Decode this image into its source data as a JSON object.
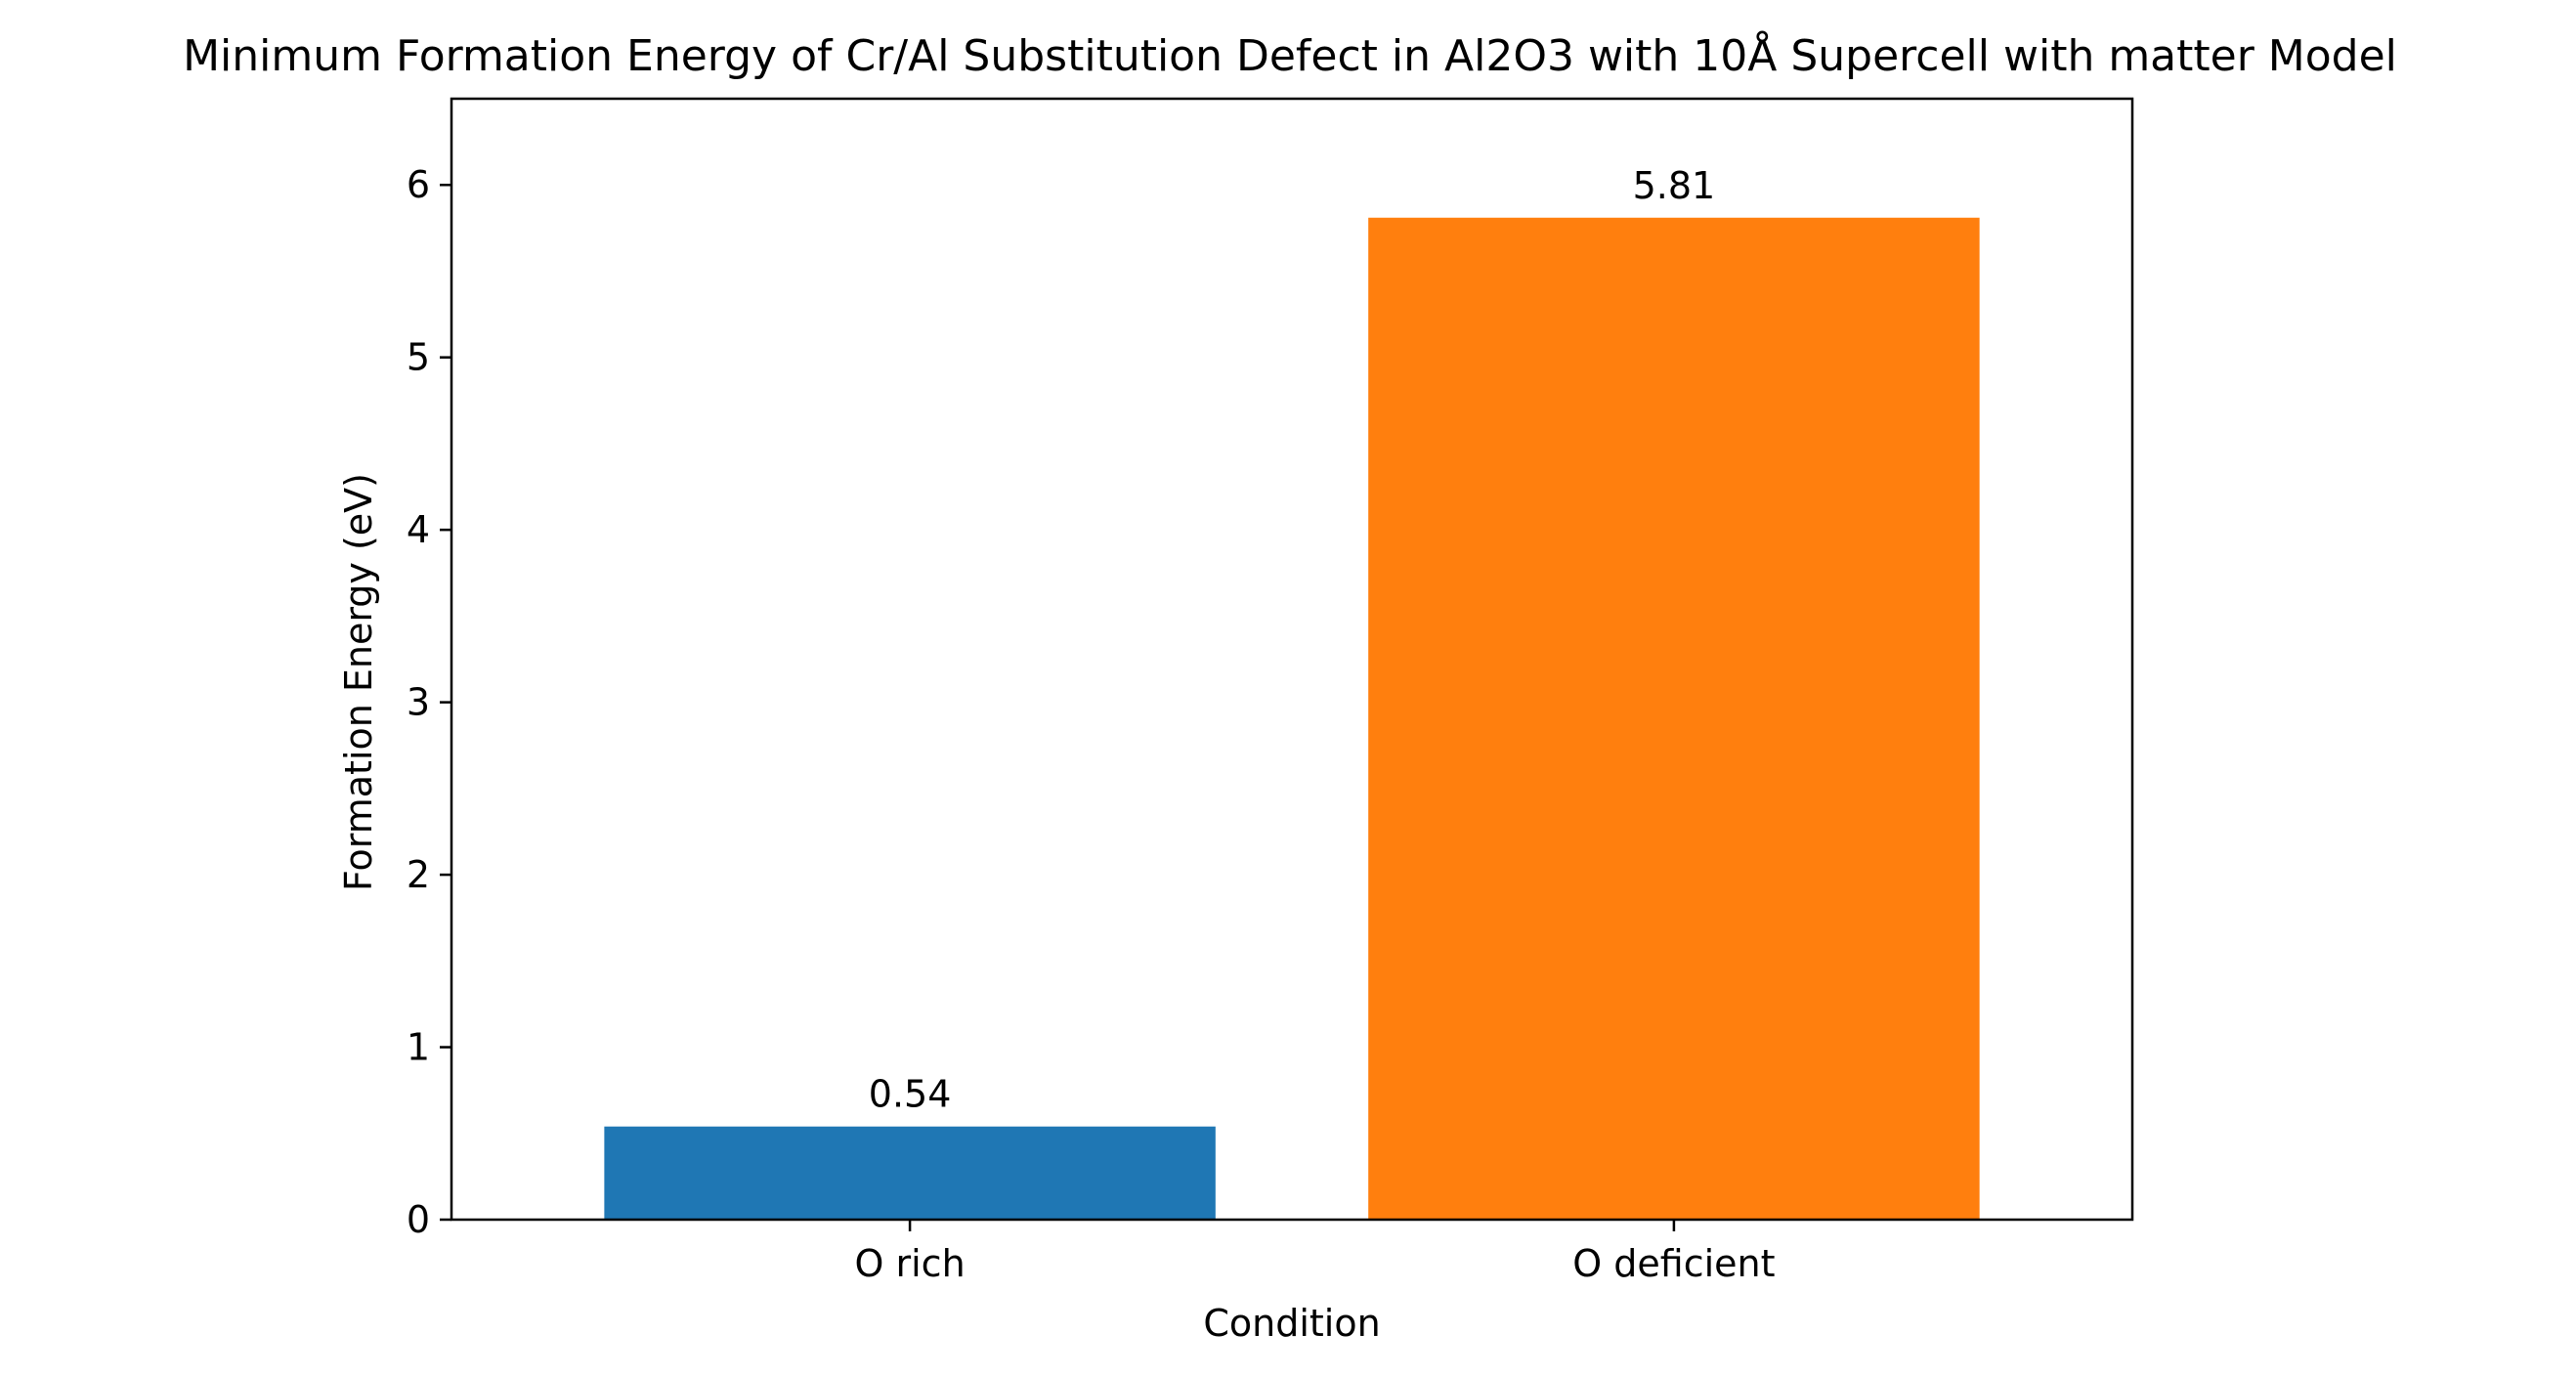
{
  "chart_data": {
    "type": "bar",
    "title": "Minimum Formation Energy of Cr/Al Substitution Defect in Al2O3 with 10Å Supercell with matter Model",
    "xlabel": "Condition",
    "ylabel": "Formation Energy (eV)",
    "categories": [
      "O rich",
      "O deficient"
    ],
    "values": [
      0.54,
      5.81
    ],
    "value_labels": [
      "0.54",
      "5.81"
    ],
    "colors": [
      "#1f77b4",
      "#ff7f0e"
    ],
    "ylim": [
      0,
      6.5
    ],
    "yticks": [
      0,
      1,
      2,
      3,
      4,
      5,
      6
    ],
    "ytick_labels": [
      "0",
      "1",
      "2",
      "3",
      "4",
      "5",
      "6"
    ],
    "grid": false,
    "legend": "none"
  }
}
